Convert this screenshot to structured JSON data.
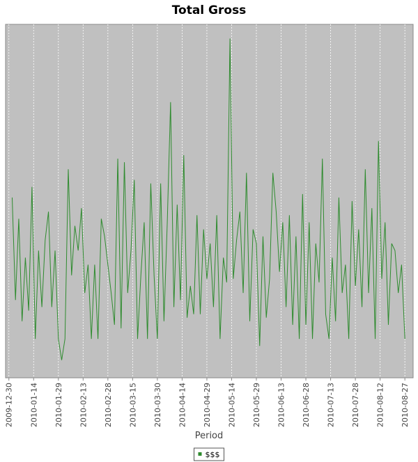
{
  "chart_data": {
    "type": "line",
    "title": "Total Gross",
    "x_label": "Period",
    "x": [
      "2010-01-01",
      "2010-01-03",
      "2010-01-05",
      "2010-01-07",
      "2010-01-09",
      "2010-01-11",
      "2010-01-13",
      "2010-01-15",
      "2010-01-17",
      "2010-01-19",
      "2010-01-21",
      "2010-01-23",
      "2010-01-25",
      "2010-01-27",
      "2010-01-29",
      "2010-01-31",
      "2010-02-02",
      "2010-02-04",
      "2010-02-06",
      "2010-02-08",
      "2010-02-10",
      "2010-02-12",
      "2010-02-14",
      "2010-02-16",
      "2010-02-18",
      "2010-02-20",
      "2010-02-22",
      "2010-02-24",
      "2010-02-26",
      "2010-02-28",
      "2010-03-02",
      "2010-03-04",
      "2010-03-06",
      "2010-03-08",
      "2010-03-10",
      "2010-03-12",
      "2010-03-14",
      "2010-03-16",
      "2010-03-18",
      "2010-03-20",
      "2010-03-22",
      "2010-03-24",
      "2010-03-26",
      "2010-03-28",
      "2010-03-30",
      "2010-04-01",
      "2010-04-03",
      "2010-04-05",
      "2010-04-07",
      "2010-04-09",
      "2010-04-11",
      "2010-04-13",
      "2010-04-15",
      "2010-04-17",
      "2010-04-19",
      "2010-04-21",
      "2010-04-23",
      "2010-04-25",
      "2010-04-27",
      "2010-04-29",
      "2010-05-01",
      "2010-05-03",
      "2010-05-05",
      "2010-05-07",
      "2010-05-09",
      "2010-05-11",
      "2010-05-13",
      "2010-05-15",
      "2010-05-17",
      "2010-05-19",
      "2010-05-21",
      "2010-05-23",
      "2010-05-25",
      "2010-05-27",
      "2010-05-29",
      "2010-05-31",
      "2010-06-02",
      "2010-06-04",
      "2010-06-06",
      "2010-06-08",
      "2010-06-10",
      "2010-06-12",
      "2010-06-14",
      "2010-06-16",
      "2010-06-18",
      "2010-06-20",
      "2010-06-22",
      "2010-06-24",
      "2010-06-26",
      "2010-06-28",
      "2010-06-30",
      "2010-07-02",
      "2010-07-04",
      "2010-07-06",
      "2010-07-08",
      "2010-07-10",
      "2010-07-12",
      "2010-07-14",
      "2010-07-16",
      "2010-07-18",
      "2010-07-20",
      "2010-07-22",
      "2010-07-24",
      "2010-07-26",
      "2010-07-28",
      "2010-07-30",
      "2010-08-01",
      "2010-08-03",
      "2010-08-05",
      "2010-08-07",
      "2010-08-09",
      "2010-08-11",
      "2010-08-13",
      "2010-08-15",
      "2010-08-17",
      "2010-08-19",
      "2010-08-21",
      "2010-08-23",
      "2010-08-25",
      "2010-08-27"
    ],
    "series": [
      {
        "name": "$$$",
        "color": "#2e8b2e",
        "values": [
          51,
          22,
          45,
          16,
          34,
          19,
          54,
          11,
          36,
          20,
          39,
          47,
          20,
          36,
          11,
          5,
          11,
          59,
          29,
          43,
          36,
          48,
          24,
          32,
          11,
          32,
          11,
          45,
          40,
          32,
          24,
          15,
          62,
          14,
          61,
          24,
          36,
          56,
          11,
          29,
          44,
          11,
          55,
          29,
          11,
          55,
          16,
          44,
          78,
          20,
          49,
          22,
          63,
          17,
          26,
          18,
          46,
          18,
          42,
          28,
          38,
          20,
          46,
          11,
          34,
          27,
          96,
          28,
          39,
          47,
          24,
          58,
          16,
          42,
          38,
          9,
          40,
          17,
          28,
          58,
          47,
          30,
          44,
          20,
          46,
          15,
          40,
          11,
          52,
          15,
          44,
          11,
          38,
          27,
          62,
          18,
          11,
          34,
          16,
          51,
          24,
          32,
          11,
          50,
          26,
          42,
          20,
          59,
          24,
          48,
          11,
          67,
          28,
          44,
          15,
          38,
          36,
          24,
          32,
          11
        ]
      }
    ],
    "xlim": [
      "2009-12-28",
      "2010-09-01"
    ],
    "xticks": [
      "2009-12-30",
      "2010-01-14",
      "2010-01-29",
      "2010-02-13",
      "2010-02-28",
      "2010-03-15",
      "2010-03-30",
      "2010-04-14",
      "2010-04-29",
      "2010-05-14",
      "2010-05-29",
      "2010-06-13",
      "2010-06-28",
      "2010-07-13",
      "2010-07-28",
      "2010-08-12",
      "2010-08-27"
    ],
    "ylim": [
      0,
      100
    ],
    "grid": true
  }
}
